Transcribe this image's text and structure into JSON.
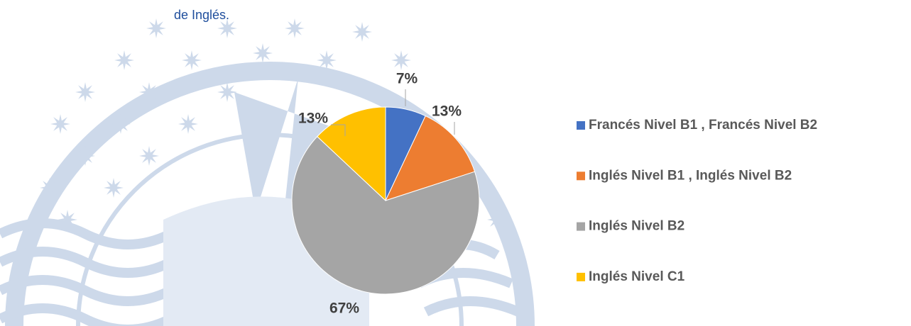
{
  "header_text": "de Inglés.",
  "chart_data": {
    "type": "pie",
    "categories": [
      "Francés Nivel B1 , Francés Nivel B2",
      "Inglés Nivel B1 , Inglés Nivel B2",
      "Inglés Nivel B2",
      "Inglés Nivel C1"
    ],
    "values": [
      7,
      13,
      67,
      13
    ],
    "value_labels": [
      "7%",
      "13%",
      "67%",
      "13%"
    ],
    "colors": [
      "#4472c4",
      "#ed7d31",
      "#a5a5a5",
      "#ffc000"
    ],
    "legend": "right"
  }
}
